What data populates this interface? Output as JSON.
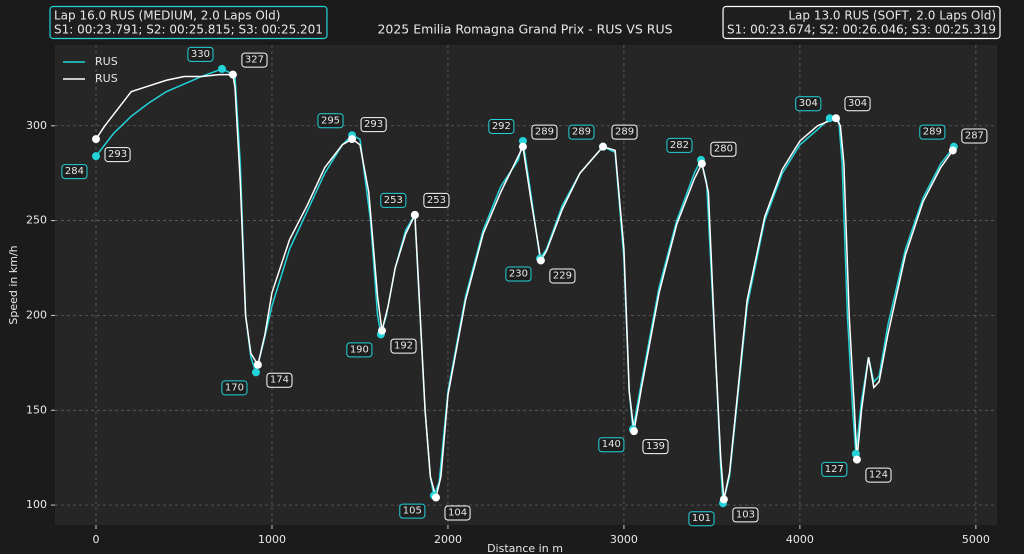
{
  "chart_data": {
    "type": "line",
    "title": "2025 Emilia Romagna Grand Prix - RUS VS RUS",
    "xlabel": "Distance in m",
    "ylabel": "Speed in km/h",
    "xlim": [
      -233,
      5120
    ],
    "ylim": [
      89.5,
      342.6
    ],
    "xticks": [
      0,
      1000,
      2000,
      3000,
      4000,
      5000
    ],
    "yticks": [
      100,
      150,
      200,
      250,
      300
    ],
    "grid": true,
    "legend": "upper left",
    "info_boxes": [
      {
        "corner": "left",
        "color": "#22d3da",
        "lines": [
          "Lap 16.0 RUS (MEDIUM, 2.0 Laps Old)",
          "S1: 00:23.791; S2: 00:25.815; S3: 00:25.201"
        ]
      },
      {
        "corner": "right",
        "color": "#ffffff",
        "lines": [
          "Lap 13.0 RUS (SOFT, 2.0 Laps Old)",
          "S1: 00:23.674; S2: 00:26.046; S3: 00:25.319"
        ]
      }
    ],
    "series": [
      {
        "name": "RUS",
        "color": "#22d3da",
        "x": [
          0,
          50,
          100,
          200,
          300,
          400,
          500,
          600,
          716,
          760,
          790,
          820,
          850,
          880,
          909,
          950,
          1000,
          1100,
          1200,
          1300,
          1400,
          1455,
          1500,
          1560,
          1600,
          1619,
          1650,
          1700,
          1760,
          1812,
          1830,
          1870,
          1900,
          1920,
          1950,
          2000,
          2100,
          2200,
          2300,
          2400,
          2426,
          2470,
          2523,
          2560,
          2650,
          2750,
          2881,
          2950,
          3000,
          3030,
          3051,
          3100,
          3200,
          3300,
          3400,
          3438,
          3470,
          3520,
          3550,
          3563,
          3600,
          3700,
          3800,
          3900,
          4000,
          4100,
          4170,
          4220,
          4240,
          4270,
          4300,
          4318,
          4350,
          4390,
          4420,
          4450,
          4500,
          4600,
          4700,
          4800,
          4875
        ],
        "values": [
          284,
          290,
          296,
          305,
          312,
          318,
          322,
          326,
          330,
          328,
          326,
          280,
          200,
          178,
          170,
          185,
          205,
          235,
          255,
          275,
          290,
          295,
          293,
          250,
          200,
          190,
          200,
          225,
          245,
          253,
          220,
          150,
          115,
          105,
          112,
          160,
          210,
          245,
          268,
          282,
          292,
          265,
          230,
          235,
          258,
          275,
          289,
          286,
          230,
          160,
          140,
          165,
          215,
          250,
          275,
          282,
          270,
          180,
          120,
          101,
          115,
          205,
          250,
          275,
          290,
          298,
          304,
          304,
          280,
          200,
          150,
          127,
          155,
          178,
          165,
          168,
          195,
          235,
          262,
          280,
          289
        ],
        "annotations": [
          {
            "x": 0,
            "value": 284
          },
          {
            "x": 716,
            "value": 330
          },
          {
            "x": 909,
            "value": 170
          },
          {
            "x": 1455,
            "value": 295
          },
          {
            "x": 1619,
            "value": 190
          },
          {
            "x": 1812,
            "value": 253
          },
          {
            "x": 1920,
            "value": 105
          },
          {
            "x": 2426,
            "value": 292
          },
          {
            "x": 2523,
            "value": 230
          },
          {
            "x": 2881,
            "value": 289
          },
          {
            "x": 3051,
            "value": 140
          },
          {
            "x": 3438,
            "value": 282
          },
          {
            "x": 3563,
            "value": 101
          },
          {
            "x": 4170,
            "value": 304
          },
          {
            "x": 4318,
            "value": 127
          },
          {
            "x": 4875,
            "value": 289
          }
        ]
      },
      {
        "name": "RUS",
        "color": "#ffffff",
        "x": [
          0,
          50,
          100,
          150,
          200,
          300,
          400,
          500,
          600,
          700,
          778,
          790,
          820,
          850,
          880,
          920,
          960,
          1000,
          1100,
          1200,
          1300,
          1400,
          1455,
          1500,
          1550,
          1600,
          1625,
          1660,
          1700,
          1760,
          1812,
          1830,
          1870,
          1900,
          1932,
          1960,
          2000,
          2100,
          2200,
          2300,
          2426,
          2470,
          2528,
          2560,
          2650,
          2750,
          2881,
          2950,
          3000,
          3030,
          3057,
          3100,
          3200,
          3300,
          3400,
          3443,
          3480,
          3520,
          3550,
          3568,
          3600,
          3700,
          3800,
          3900,
          4000,
          4100,
          4205,
          4230,
          4250,
          4280,
          4310,
          4324,
          4350,
          4390,
          4420,
          4450,
          4500,
          4600,
          4700,
          4800,
          4869
        ],
        "values": [
          293,
          300,
          306,
          312,
          318,
          321,
          324,
          326,
          326,
          327,
          327,
          320,
          270,
          200,
          180,
          174,
          190,
          212,
          240,
          258,
          278,
          290,
          293,
          290,
          265,
          210,
          192,
          205,
          225,
          243,
          253,
          222,
          150,
          115,
          104,
          115,
          158,
          208,
          243,
          265,
          289,
          262,
          229,
          234,
          256,
          275,
          289,
          287,
          235,
          160,
          139,
          162,
          212,
          248,
          272,
          280,
          265,
          180,
          125,
          103,
          117,
          208,
          252,
          277,
          292,
          300,
          304,
          300,
          280,
          200,
          150,
          124,
          150,
          178,
          162,
          165,
          190,
          232,
          260,
          278,
          287
        ],
        "annotations": [
          {
            "x": 0,
            "value": 293
          },
          {
            "x": 778,
            "value": 327
          },
          {
            "x": 920,
            "value": 174
          },
          {
            "x": 1455,
            "value": 293
          },
          {
            "x": 1625,
            "value": 192
          },
          {
            "x": 1812,
            "value": 253
          },
          {
            "x": 1932,
            "value": 104
          },
          {
            "x": 2426,
            "value": 289
          },
          {
            "x": 2528,
            "value": 229
          },
          {
            "x": 2881,
            "value": 289
          },
          {
            "x": 3057,
            "value": 139
          },
          {
            "x": 3443,
            "value": 280
          },
          {
            "x": 3568,
            "value": 103
          },
          {
            "x": 4205,
            "value": 304
          },
          {
            "x": 4324,
            "value": 124
          },
          {
            "x": 4869,
            "value": 287
          }
        ]
      }
    ]
  }
}
